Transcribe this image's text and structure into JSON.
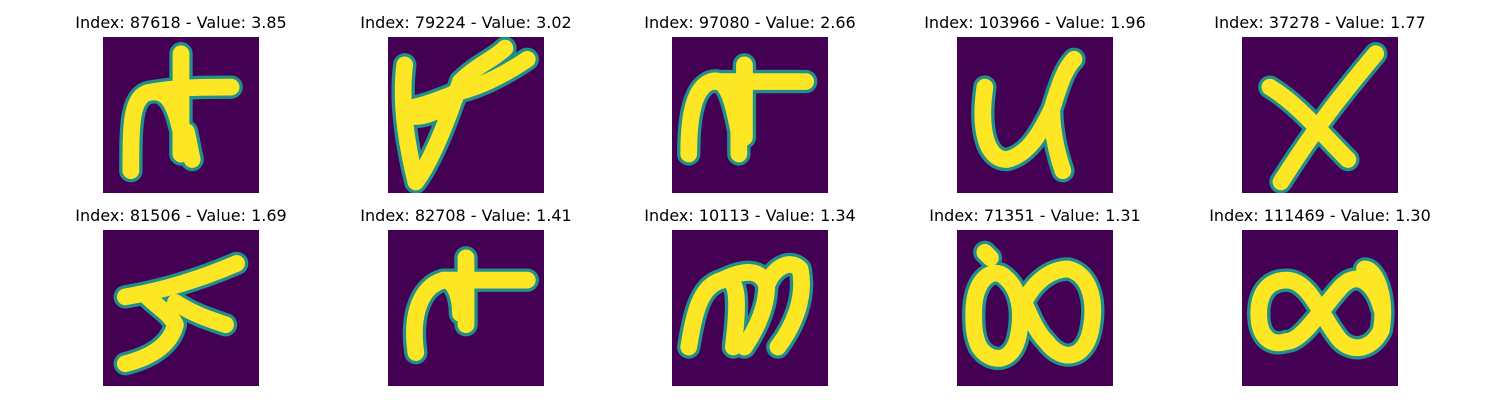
{
  "figure": {
    "colors": {
      "background": "#440154",
      "edge": "#21908c",
      "stroke": "#fde725"
    }
  },
  "panels": [
    {
      "title": "Index: 87618 - Value: 3.85",
      "index": 87618,
      "value": 3.85,
      "glyph": "n-with-crossbar"
    },
    {
      "title": "Index: 79224 - Value: 3.02",
      "index": 79224,
      "value": 3.02,
      "glyph": "looped-y"
    },
    {
      "title": "Index: 97080 - Value: 2.66",
      "index": 97080,
      "value": 2.66,
      "glyph": "n-with-plus"
    },
    {
      "title": "Index: 103966 - Value: 1.96",
      "index": 103966,
      "value": 1.96,
      "glyph": "u-shape"
    },
    {
      "title": "Index: 37278 - Value: 1.77",
      "index": 37278,
      "value": 1.77,
      "glyph": "x-shape"
    },
    {
      "title": "Index: 81506 - Value: 1.69",
      "index": 81506,
      "value": 1.69,
      "glyph": "slanted-five"
    },
    {
      "title": "Index: 82708 - Value: 1.41",
      "index": 82708,
      "value": 1.41,
      "glyph": "r-with-crossbar"
    },
    {
      "title": "Index: 10113 - Value: 1.34",
      "index": 10113,
      "value": 1.34,
      "glyph": "m-shape"
    },
    {
      "title": "Index: 71351 - Value: 1.31",
      "index": 71351,
      "value": 1.31,
      "glyph": "double-loop"
    },
    {
      "title": "Index: 111469 - Value: 1.30",
      "index": 111469,
      "value": 1.3,
      "glyph": "infinity"
    }
  ],
  "chart_data": {
    "type": "table",
    "columns": [
      "Index",
      "Value"
    ],
    "rows": [
      [
        87618,
        3.85
      ],
      [
        79224,
        3.02
      ],
      [
        97080,
        2.66
      ],
      [
        103966,
        1.96
      ],
      [
        37278,
        1.77
      ],
      [
        81506,
        1.69
      ],
      [
        82708,
        1.41
      ],
      [
        10113,
        1.34
      ],
      [
        71351,
        1.31
      ],
      [
        111469,
        1.3
      ]
    ]
  }
}
